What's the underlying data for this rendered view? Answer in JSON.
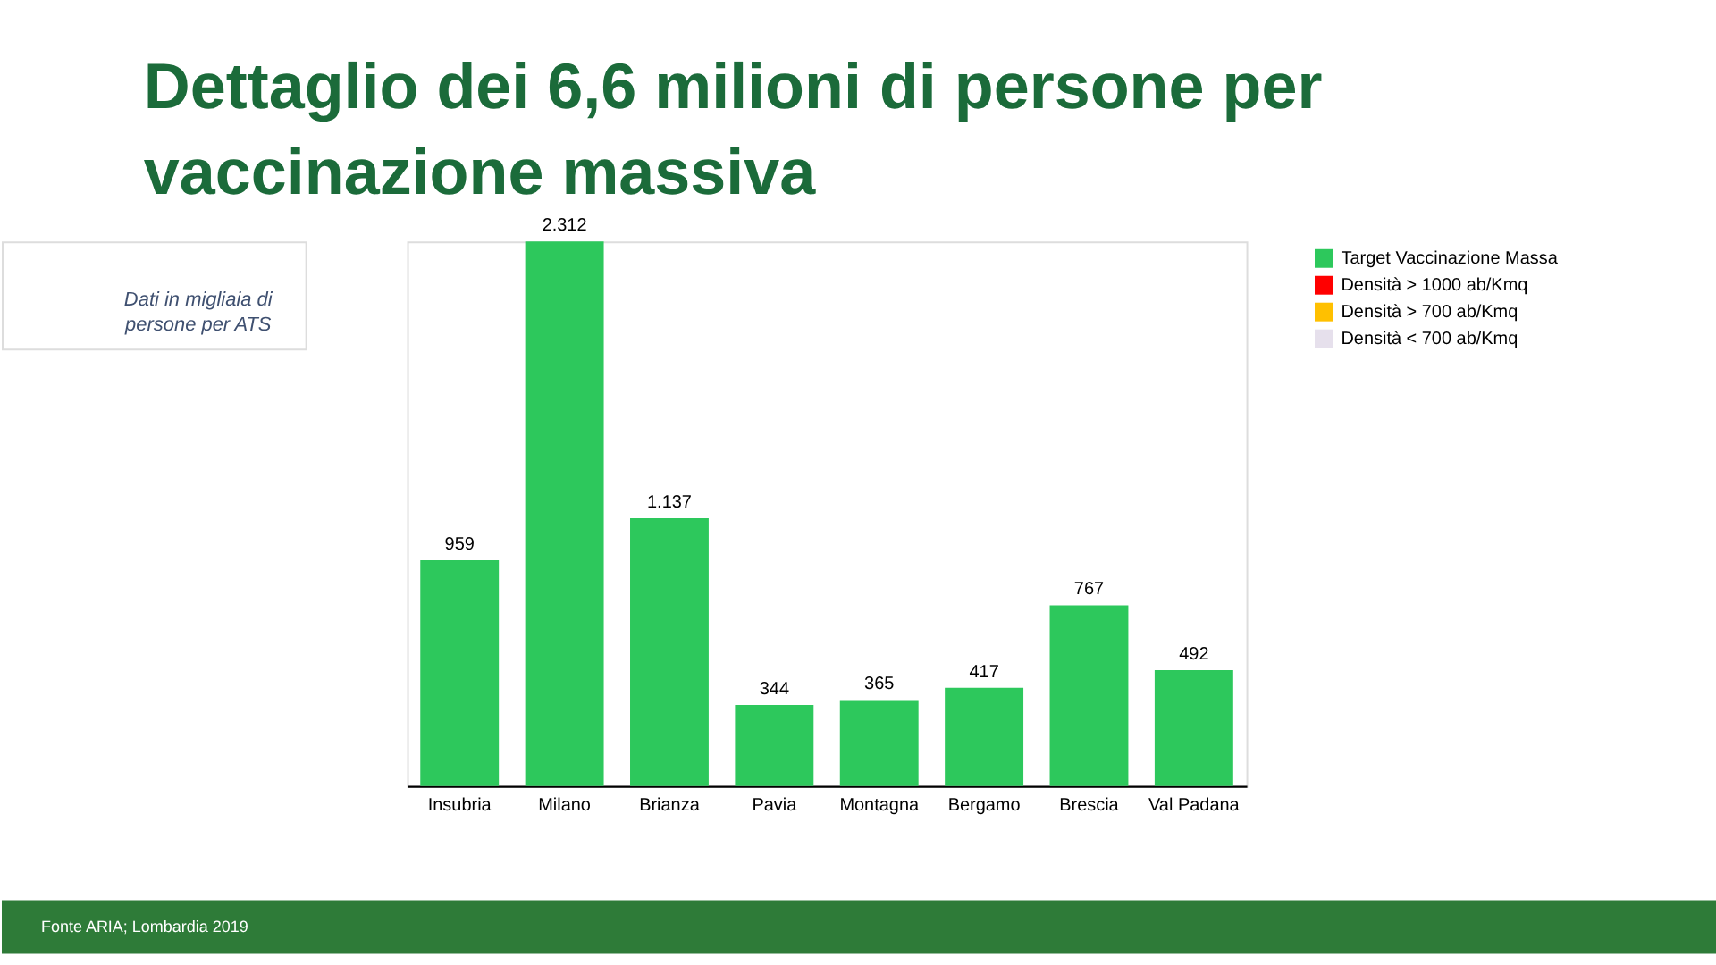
{
  "chart_data": {
    "type": "bar",
    "title": "Dettaglio dei 6,6 milioni di persone per vaccinazione massiva",
    "subtitle": "Dati in migliaia di persone per ATS",
    "categories": [
      "Insubria",
      "Milano",
      "Brianza",
      "Pavia",
      "Montagna",
      "Bergamo",
      "Brescia",
      "Val Padana"
    ],
    "series": [
      {
        "name": "Target Vaccinazione Massa",
        "color": "#2dc85c",
        "values": [
          959,
          2312,
          1137,
          344,
          365,
          417,
          767,
          492
        ],
        "value_labels": [
          "959",
          "2.312",
          "1.137",
          "344",
          "365",
          "417",
          "767",
          "492"
        ]
      },
      {
        "name": "Densità > 1000 ab/Kmq",
        "color": "#ff0000",
        "values": [
          null,
          null,
          null,
          null,
          null,
          null,
          null,
          null
        ]
      },
      {
        "name": "Densità > 700 ab/Kmq",
        "color": "#ffc000",
        "values": [
          null,
          null,
          null,
          null,
          null,
          null,
          null,
          null
        ]
      },
      {
        "name": "Densità < 700 ab/Kmq",
        "color": "#e6e0ec",
        "values": [
          null,
          null,
          null,
          null,
          null,
          null,
          null,
          null
        ]
      }
    ],
    "legend": "top right",
    "annotations": [
      "Fonte ARIA; Lombardia 2019"
    ]
  }
}
